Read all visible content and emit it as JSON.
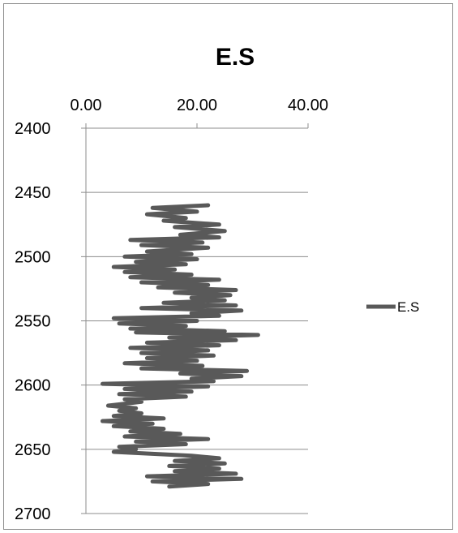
{
  "chart_data": {
    "type": "line",
    "title": "E.S",
    "x_axis": {
      "position": "top",
      "range": [
        0,
        40
      ],
      "tick_labels": [
        "0.00",
        "20.00",
        "40.00"
      ],
      "ticks": [
        0,
        20,
        40
      ]
    },
    "y_axis": {
      "inverted": true,
      "range": [
        2400,
        2700
      ],
      "tick_labels": [
        "2400",
        "2450",
        "2500",
        "2550",
        "2600",
        "2650",
        "2700"
      ],
      "ticks": [
        2400,
        2450,
        2500,
        2550,
        2600,
        2650,
        2700
      ]
    },
    "grid": {
      "horizontal": true,
      "vertical": false
    },
    "legend": {
      "placement": "right",
      "entries": [
        "E.S"
      ]
    },
    "series_color": "#595959",
    "series": [
      {
        "name": "E.S",
        "points": [
          [
            22,
            2460
          ],
          [
            12,
            2462
          ],
          [
            20,
            2465
          ],
          [
            11,
            2467
          ],
          [
            18,
            2470
          ],
          [
            14,
            2472
          ],
          [
            24,
            2475
          ],
          [
            16,
            2477
          ],
          [
            25,
            2480
          ],
          [
            17,
            2483
          ],
          [
            24,
            2485
          ],
          [
            8,
            2487
          ],
          [
            21,
            2489
          ],
          [
            10,
            2491
          ],
          [
            22,
            2493
          ],
          [
            11,
            2496
          ],
          [
            19,
            2498
          ],
          [
            7,
            2500
          ],
          [
            20,
            2502
          ],
          [
            9,
            2504
          ],
          [
            18,
            2506
          ],
          [
            5,
            2508
          ],
          [
            16,
            2510
          ],
          [
            7,
            2512
          ],
          [
            19,
            2514
          ],
          [
            8,
            2516
          ],
          [
            24,
            2518
          ],
          [
            10,
            2520
          ],
          [
            22,
            2522
          ],
          [
            13,
            2524
          ],
          [
            27,
            2526
          ],
          [
            16,
            2528
          ],
          [
            26,
            2530
          ],
          [
            19,
            2532
          ],
          [
            25,
            2534
          ],
          [
            14,
            2536
          ],
          [
            27,
            2538
          ],
          [
            10,
            2540
          ],
          [
            28,
            2542
          ],
          [
            19,
            2544
          ],
          [
            24,
            2546
          ],
          [
            5,
            2548
          ],
          [
            20,
            2550
          ],
          [
            6,
            2552
          ],
          [
            18,
            2554
          ],
          [
            8,
            2556
          ],
          [
            25,
            2558
          ],
          [
            9,
            2559
          ],
          [
            31,
            2561
          ],
          [
            15,
            2563
          ],
          [
            27,
            2565
          ],
          [
            11,
            2567
          ],
          [
            24,
            2569
          ],
          [
            8,
            2571
          ],
          [
            22,
            2573
          ],
          [
            10,
            2575
          ],
          [
            23,
            2577
          ],
          [
            11,
            2579
          ],
          [
            20,
            2581
          ],
          [
            7,
            2583
          ],
          [
            21,
            2585
          ],
          [
            10,
            2587
          ],
          [
            29,
            2589
          ],
          [
            17,
            2591
          ],
          [
            28,
            2593
          ],
          [
            19,
            2595
          ],
          [
            23,
            2597
          ],
          [
            3,
            2599
          ],
          [
            22,
            2601
          ],
          [
            7,
            2603
          ],
          [
            19,
            2605
          ],
          [
            6,
            2607
          ],
          [
            18,
            2609
          ],
          [
            7,
            2611
          ],
          [
            10,
            2613
          ],
          [
            4,
            2616
          ],
          [
            9,
            2618
          ],
          [
            6,
            2620
          ],
          [
            10,
            2622
          ],
          [
            5,
            2624
          ],
          [
            14,
            2626
          ],
          [
            3,
            2628
          ],
          [
            12,
            2630
          ],
          [
            5,
            2632
          ],
          [
            14,
            2634
          ],
          [
            8,
            2636
          ],
          [
            17,
            2638
          ],
          [
            7,
            2640
          ],
          [
            22,
            2642
          ],
          [
            9,
            2644
          ],
          [
            18,
            2646
          ],
          [
            6,
            2648
          ],
          [
            9,
            2650
          ],
          [
            5,
            2652
          ],
          [
            19,
            2655
          ],
          [
            24,
            2657
          ],
          [
            16,
            2659
          ],
          [
            25,
            2661
          ],
          [
            15,
            2663
          ],
          [
            24,
            2665
          ],
          [
            16,
            2667
          ],
          [
            27,
            2669
          ],
          [
            11,
            2671
          ],
          [
            28,
            2673
          ],
          [
            12,
            2675
          ],
          [
            22,
            2677
          ],
          [
            15,
            2679
          ]
        ]
      }
    ]
  }
}
